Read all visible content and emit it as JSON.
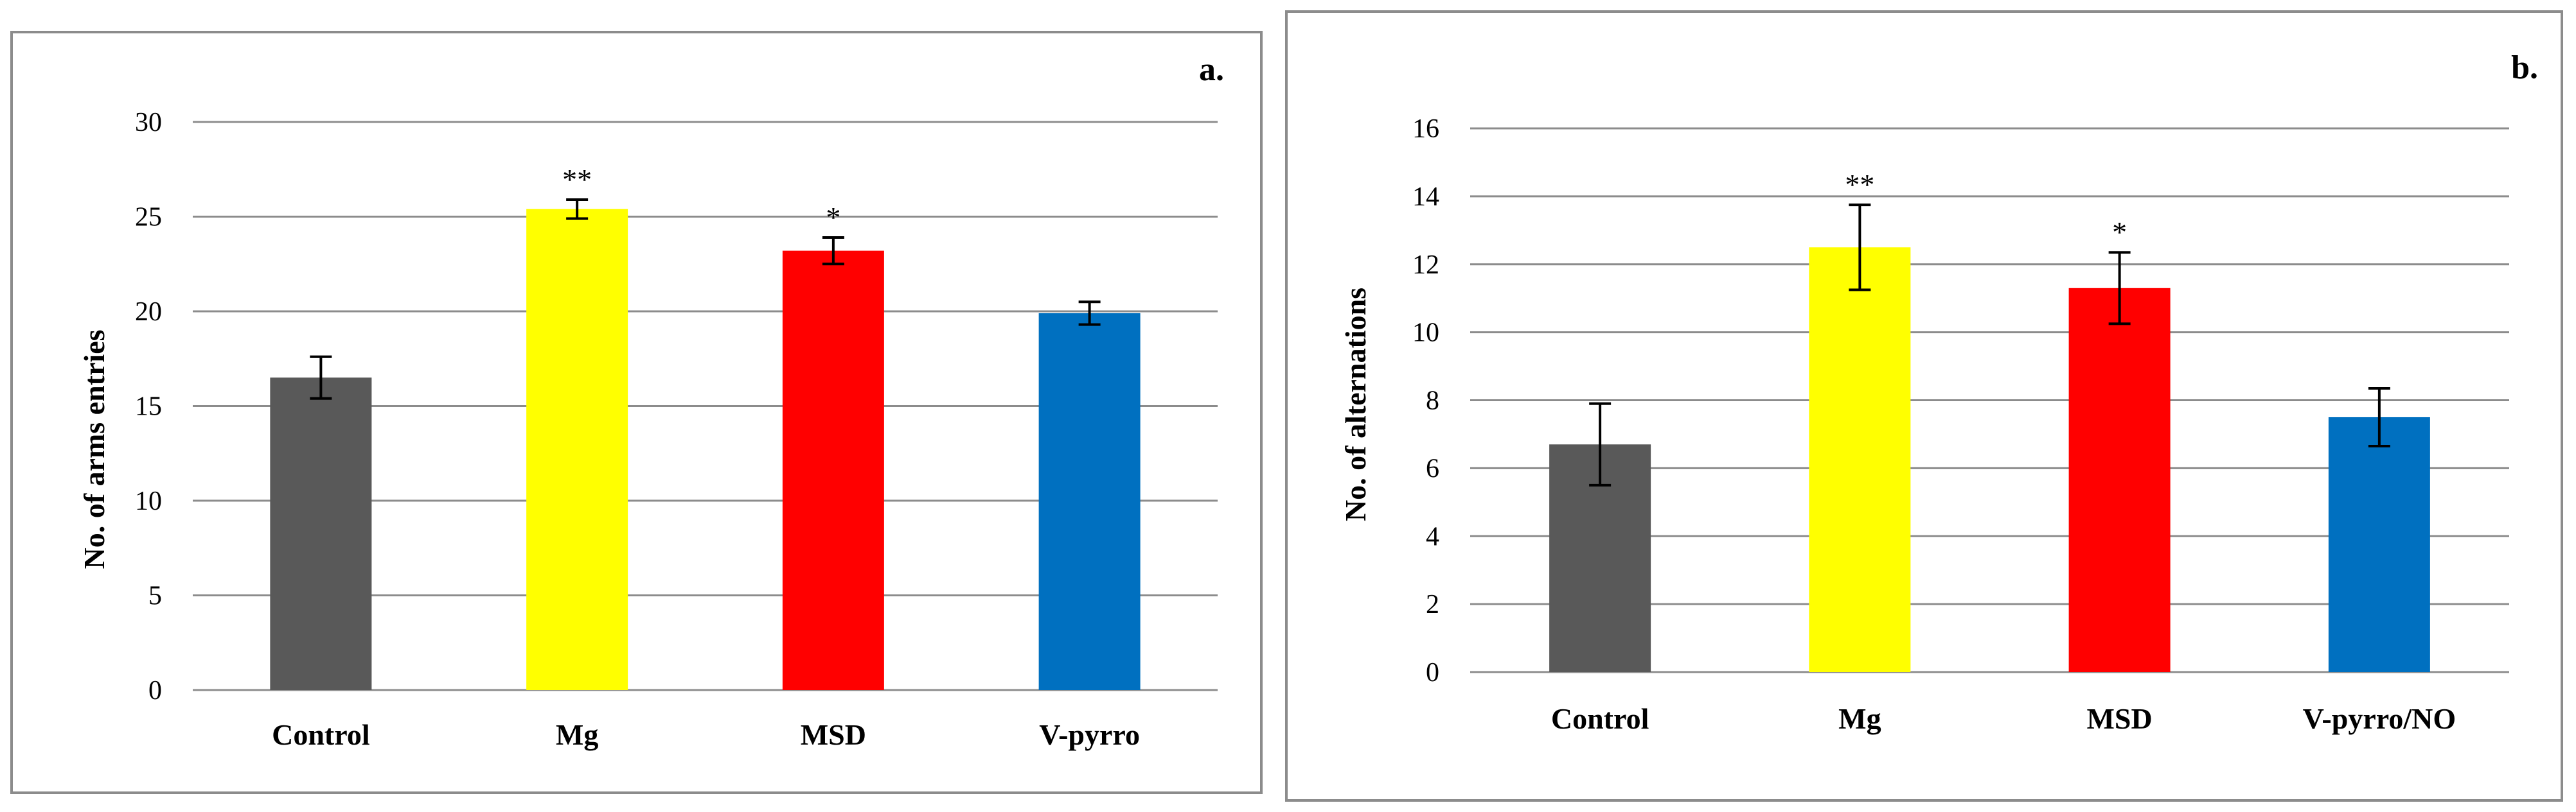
{
  "chart_data": [
    {
      "type": "bar",
      "panel_label": "a.",
      "title": "",
      "xlabel": "",
      "ylabel": "No. of arms  entries",
      "categories": [
        "Control",
        "Mg",
        "MSD",
        "V-pyrro"
      ],
      "values": [
        16.5,
        25.4,
        23.2,
        19.9
      ],
      "errors": [
        1.1,
        0.5,
        0.7,
        0.6
      ],
      "annotations": [
        "",
        "**",
        "*",
        ""
      ],
      "colors": [
        "#595959",
        "#ffff00",
        "#ff0000",
        "#0070c0"
      ],
      "ylim": [
        0,
        30
      ],
      "yticks": [
        0,
        5,
        10,
        15,
        20,
        25,
        30
      ],
      "grid": true,
      "legend": "none"
    },
    {
      "type": "bar",
      "panel_label": "b.",
      "title": "",
      "xlabel": "",
      "ylabel": "No. of alternations",
      "categories": [
        "Control",
        "Mg",
        "MSD",
        "V-pyrro/NO"
      ],
      "values": [
        6.7,
        12.5,
        11.3,
        7.5
      ],
      "errors": [
        1.2,
        1.25,
        1.05,
        0.85
      ],
      "annotations": [
        "",
        "**",
        "*",
        ""
      ],
      "colors": [
        "#595959",
        "#ffff00",
        "#ff0000",
        "#0070c0"
      ],
      "ylim": [
        0,
        16
      ],
      "yticks": [
        0,
        2,
        4,
        6,
        8,
        10,
        12,
        14,
        16
      ],
      "grid": true,
      "legend": "none"
    }
  ]
}
